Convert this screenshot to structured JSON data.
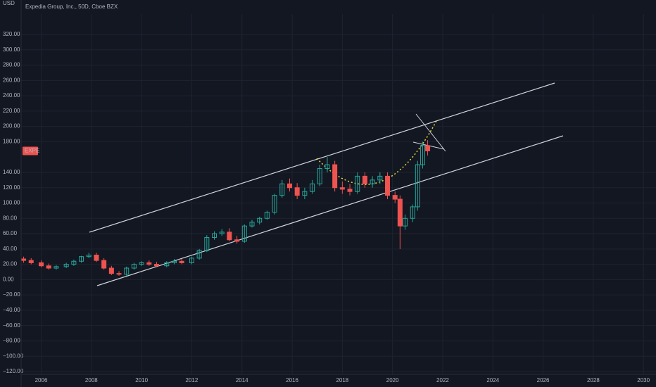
{
  "chart_data": {
    "type": "candlestick",
    "title": "Expedia Group, Inc., 50D, Cboe BZX",
    "y_axis_unit": "USD",
    "symbol_label": "EXPE",
    "up_color": "#26a69a",
    "down_color": "#ef5350",
    "grid": true,
    "xlim": [
      2005.2,
      2030.5
    ],
    "xticks": [
      2006,
      2008,
      2010,
      2012,
      2014,
      2016,
      2018,
      2020,
      2022,
      2024,
      2026,
      2028,
      2030
    ],
    "ylim": [
      -120,
      320
    ],
    "yticks": [
      {
        "value": 320,
        "label": "320.00"
      },
      {
        "value": 300,
        "label": "300.00"
      },
      {
        "value": 280,
        "label": "280.00"
      },
      {
        "value": 260,
        "label": "260.00"
      },
      {
        "value": 240,
        "label": "240.00"
      },
      {
        "value": 220,
        "label": "220.00"
      },
      {
        "value": 200,
        "label": "200.00"
      },
      {
        "value": 180,
        "label": "180.00"
      },
      {
        "value": 140,
        "label": "140.00"
      },
      {
        "value": 120,
        "label": "120.00"
      },
      {
        "value": 100,
        "label": "100.00"
      },
      {
        "value": 80,
        "label": "80.00"
      },
      {
        "value": 60,
        "label": "60.00"
      },
      {
        "value": 40,
        "label": "40.00"
      },
      {
        "value": 20,
        "label": "20.00"
      },
      {
        "value": 0,
        "label": "0.00"
      },
      {
        "value": -20,
        "label": "−20.00"
      },
      {
        "value": -40,
        "label": "−40.00"
      },
      {
        "value": -60,
        "label": "−60.00"
      },
      {
        "value": -80,
        "label": "−80.00"
      },
      {
        "value": -100,
        "label": "−100.00"
      },
      {
        "value": -120,
        "label": "−120.00"
      }
    ],
    "x": [
      2005.3,
      2005.6,
      2006.0,
      2006.3,
      2006.6,
      2007.0,
      2007.3,
      2007.6,
      2007.9,
      2008.2,
      2008.5,
      2008.8,
      2009.1,
      2009.4,
      2009.7,
      2010.0,
      2010.3,
      2010.6,
      2011.0,
      2011.3,
      2011.6,
      2012.0,
      2012.3,
      2012.6,
      2012.9,
      2013.2,
      2013.5,
      2013.8,
      2014.1,
      2014.4,
      2014.7,
      2015.0,
      2015.3,
      2015.6,
      2015.9,
      2016.2,
      2016.5,
      2016.8,
      2017.1,
      2017.4,
      2017.7,
      2018.0,
      2018.3,
      2018.6,
      2018.9,
      2019.2,
      2019.5,
      2019.8,
      2020.1,
      2020.3,
      2020.5,
      2020.8,
      2021.0,
      2021.2,
      2021.4
    ],
    "open": [
      27,
      25,
      22,
      18,
      15,
      17,
      20,
      24,
      30,
      32,
      25,
      15,
      8,
      7,
      15,
      20,
      22,
      20,
      18,
      22,
      24,
      22,
      28,
      38,
      55,
      60,
      62,
      52,
      50,
      70,
      75,
      80,
      88,
      110,
      125,
      120,
      110,
      115,
      125,
      145,
      150,
      120,
      118,
      115,
      135,
      125,
      130,
      135,
      110,
      105,
      70,
      80,
      95,
      150,
      175
    ],
    "high": [
      30,
      28,
      25,
      21,
      19,
      22,
      26,
      31,
      35,
      35,
      28,
      18,
      11,
      17,
      22,
      24,
      25,
      23,
      24,
      27,
      27,
      30,
      40,
      58,
      63,
      66,
      67,
      57,
      72,
      78,
      82,
      90,
      112,
      130,
      132,
      126,
      120,
      130,
      150,
      160,
      155,
      128,
      125,
      140,
      140,
      135,
      140,
      140,
      115,
      110,
      85,
      98,
      155,
      180,
      182
    ],
    "low": [
      22,
      20,
      16,
      13,
      13,
      15,
      18,
      22,
      28,
      23,
      13,
      6,
      5,
      5,
      13,
      18,
      18,
      16,
      16,
      20,
      20,
      20,
      26,
      36,
      52,
      57,
      50,
      47,
      48,
      68,
      72,
      78,
      85,
      107,
      115,
      105,
      105,
      112,
      122,
      140,
      115,
      112,
      110,
      112,
      120,
      120,
      125,
      105,
      100,
      40,
      65,
      75,
      90,
      145,
      162
    ],
    "close": [
      25,
      22,
      18,
      15,
      17,
      20,
      24,
      30,
      32,
      25,
      15,
      8,
      7,
      15,
      20,
      22,
      20,
      18,
      22,
      24,
      22,
      28,
      38,
      55,
      60,
      62,
      52,
      50,
      70,
      75,
      80,
      88,
      110,
      125,
      120,
      110,
      115,
      125,
      145,
      150,
      120,
      118,
      115,
      135,
      125,
      130,
      135,
      110,
      105,
      70,
      80,
      95,
      150,
      175,
      168
    ]
  }
}
